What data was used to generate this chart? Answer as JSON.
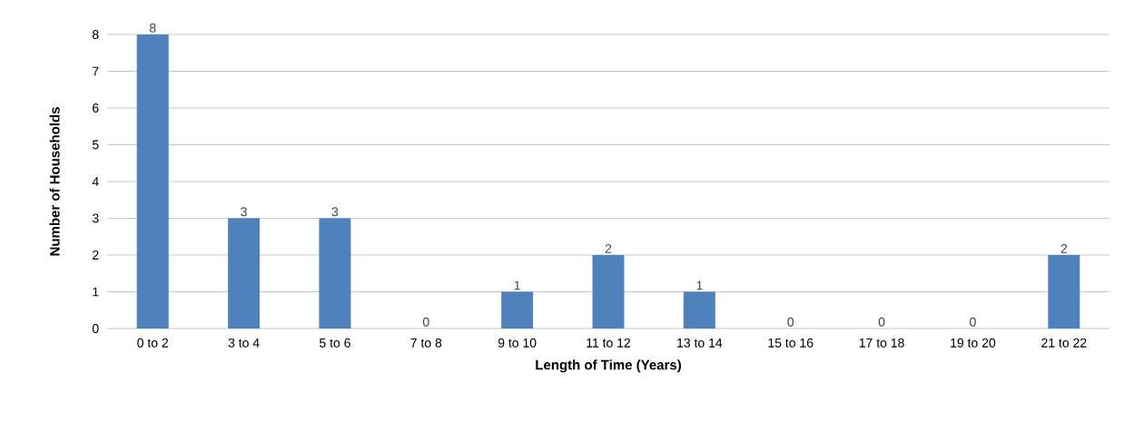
{
  "chart_data": {
    "type": "bar",
    "xlabel": "Length of Time (Years)",
    "ylabel": "Number of Households",
    "categories": [
      "0 to 2",
      "3 to 4",
      "5 to 6",
      "7 to 8",
      "9 to 10",
      "11 to 12",
      "13 to 14",
      "15 to 16",
      "17 to 18",
      "19 to 20",
      "21 to 22"
    ],
    "values": [
      8,
      3,
      3,
      0,
      1,
      2,
      1,
      0,
      0,
      0,
      2
    ],
    "color": "#4f81bd",
    "ylim": [
      0,
      8
    ],
    "yticks": [
      0,
      1,
      2,
      3,
      4,
      5,
      6,
      7,
      8
    ],
    "grid": "y",
    "data_labels": true
  }
}
